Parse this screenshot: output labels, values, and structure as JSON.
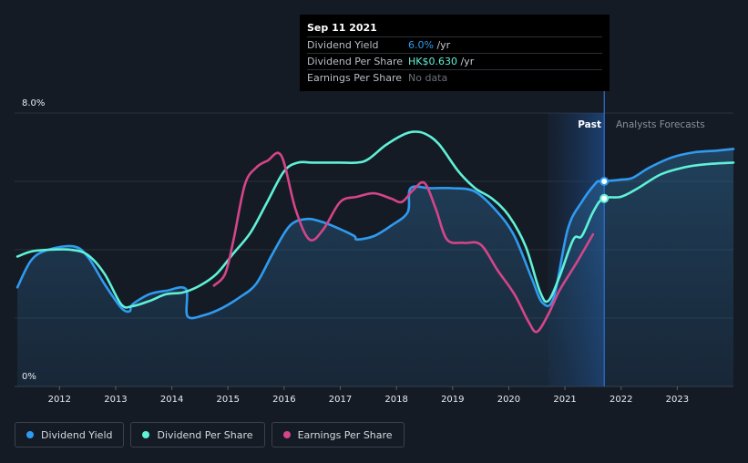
{
  "chart_data": {
    "type": "line",
    "y_axis": {
      "min": 0,
      "max": 8.0,
      "tick_labels": [
        "8.0%",
        "0%"
      ]
    },
    "x_axis": {
      "range": [
        2011.2,
        2024.0
      ],
      "tick_labels": [
        "2012",
        "2013",
        "2014",
        "2015",
        "2016",
        "2017",
        "2018",
        "2019",
        "2020",
        "2021",
        "2022",
        "2023"
      ]
    },
    "past_forecast_split": 2021.7,
    "past_label": "Past",
    "forecast_label": "Analysts Forecasts",
    "series": [
      {
        "name": "Dividend Yield",
        "color": "#2f9bf0",
        "filled": true,
        "points": [
          [
            2011.25,
            2.9
          ],
          [
            2011.5,
            3.7
          ],
          [
            2011.8,
            4.0
          ],
          [
            2012.25,
            4.1
          ],
          [
            2012.5,
            3.8
          ],
          [
            2012.8,
            3.0
          ],
          [
            2013.1,
            2.3
          ],
          [
            2013.25,
            2.2
          ],
          [
            2013.3,
            2.4
          ],
          [
            2013.6,
            2.7
          ],
          [
            2013.9,
            2.8
          ],
          [
            2014.25,
            2.85
          ],
          [
            2014.28,
            2.05
          ],
          [
            2014.6,
            2.1
          ],
          [
            2014.9,
            2.3
          ],
          [
            2015.2,
            2.6
          ],
          [
            2015.5,
            3.0
          ],
          [
            2015.8,
            3.9
          ],
          [
            2016.1,
            4.7
          ],
          [
            2016.4,
            4.9
          ],
          [
            2016.7,
            4.8
          ],
          [
            2017.0,
            4.6
          ],
          [
            2017.25,
            4.4
          ],
          [
            2017.3,
            4.3
          ],
          [
            2017.6,
            4.4
          ],
          [
            2017.9,
            4.7
          ],
          [
            2018.2,
            5.1
          ],
          [
            2018.25,
            5.8
          ],
          [
            2018.6,
            5.8
          ],
          [
            2019.0,
            5.8
          ],
          [
            2019.4,
            5.7
          ],
          [
            2019.8,
            5.1
          ],
          [
            2020.1,
            4.4
          ],
          [
            2020.4,
            3.2
          ],
          [
            2020.6,
            2.45
          ],
          [
            2020.8,
            2.6
          ],
          [
            2021.05,
            4.6
          ],
          [
            2021.3,
            5.4
          ],
          [
            2021.55,
            5.95
          ],
          [
            2021.62,
            6.0
          ],
          [
            2021.68,
            6.0
          ],
          [
            2022.0,
            6.05
          ],
          [
            2022.2,
            6.1
          ],
          [
            2022.5,
            6.4
          ],
          [
            2022.9,
            6.7
          ],
          [
            2023.3,
            6.85
          ],
          [
            2023.7,
            6.9
          ],
          [
            2024.0,
            6.95
          ]
        ],
        "fill_until": 2021.68
      },
      {
        "name": "Dividend Per Share",
        "color": "#5ff1d8",
        "points": [
          [
            2011.25,
            3.8
          ],
          [
            2011.5,
            3.95
          ],
          [
            2011.8,
            4.0
          ],
          [
            2012.2,
            4.0
          ],
          [
            2012.5,
            3.85
          ],
          [
            2012.8,
            3.3
          ],
          [
            2013.1,
            2.4
          ],
          [
            2013.3,
            2.35
          ],
          [
            2013.6,
            2.5
          ],
          [
            2013.9,
            2.7
          ],
          [
            2014.2,
            2.75
          ],
          [
            2014.5,
            2.95
          ],
          [
            2014.8,
            3.3
          ],
          [
            2015.1,
            3.9
          ],
          [
            2015.4,
            4.5
          ],
          [
            2015.7,
            5.4
          ],
          [
            2016.0,
            6.3
          ],
          [
            2016.25,
            6.55
          ],
          [
            2016.5,
            6.55
          ],
          [
            2017.0,
            6.55
          ],
          [
            2017.3,
            6.55
          ],
          [
            2017.5,
            6.65
          ],
          [
            2017.8,
            7.05
          ],
          [
            2018.1,
            7.35
          ],
          [
            2018.3,
            7.45
          ],
          [
            2018.5,
            7.4
          ],
          [
            2018.75,
            7.1
          ],
          [
            2019.1,
            6.3
          ],
          [
            2019.4,
            5.8
          ],
          [
            2019.7,
            5.5
          ],
          [
            2020.0,
            5.0
          ],
          [
            2020.3,
            4.1
          ],
          [
            2020.55,
            2.8
          ],
          [
            2020.7,
            2.5
          ],
          [
            2020.9,
            3.2
          ],
          [
            2021.15,
            4.3
          ],
          [
            2021.3,
            4.4
          ],
          [
            2021.5,
            5.1
          ],
          [
            2021.68,
            5.5
          ],
          [
            2022.0,
            5.55
          ],
          [
            2022.3,
            5.8
          ],
          [
            2022.7,
            6.2
          ],
          [
            2023.1,
            6.4
          ],
          [
            2023.5,
            6.5
          ],
          [
            2024.0,
            6.55
          ]
        ]
      },
      {
        "name": "Earnings Per Share",
        "color": "#d4458a",
        "points": [
          [
            2014.75,
            2.95
          ],
          [
            2014.95,
            3.3
          ],
          [
            2015.1,
            4.3
          ],
          [
            2015.3,
            5.9
          ],
          [
            2015.5,
            6.4
          ],
          [
            2015.7,
            6.6
          ],
          [
            2015.95,
            6.75
          ],
          [
            2016.2,
            5.2
          ],
          [
            2016.45,
            4.3
          ],
          [
            2016.7,
            4.6
          ],
          [
            2017.0,
            5.4
          ],
          [
            2017.3,
            5.55
          ],
          [
            2017.6,
            5.65
          ],
          [
            2017.9,
            5.5
          ],
          [
            2018.1,
            5.4
          ],
          [
            2018.3,
            5.75
          ],
          [
            2018.5,
            5.95
          ],
          [
            2018.7,
            5.2
          ],
          [
            2018.9,
            4.3
          ],
          [
            2019.2,
            4.2
          ],
          [
            2019.5,
            4.15
          ],
          [
            2019.8,
            3.4
          ],
          [
            2020.1,
            2.7
          ],
          [
            2020.35,
            1.9
          ],
          [
            2020.5,
            1.6
          ],
          [
            2020.7,
            2.1
          ],
          [
            2020.9,
            2.8
          ],
          [
            2021.2,
            3.6
          ],
          [
            2021.5,
            4.45
          ]
        ]
      }
    ]
  },
  "tooltip": {
    "date": "Sep 11 2021",
    "rows": [
      {
        "label": "Dividend Yield",
        "value": "6.0%",
        "suffix": " /yr"
      },
      {
        "label": "Dividend Per Share",
        "value": "HK$0.630",
        "suffix": " /yr"
      },
      {
        "label": "Earnings Per Share",
        "value": "No data",
        "suffix": ""
      }
    ]
  },
  "legend": [
    {
      "label": "Dividend Yield",
      "color": "#2f9bf0"
    },
    {
      "label": "Dividend Per Share",
      "color": "#5ff1d8"
    },
    {
      "label": "Earnings Per Share",
      "color": "#d4458a"
    }
  ]
}
